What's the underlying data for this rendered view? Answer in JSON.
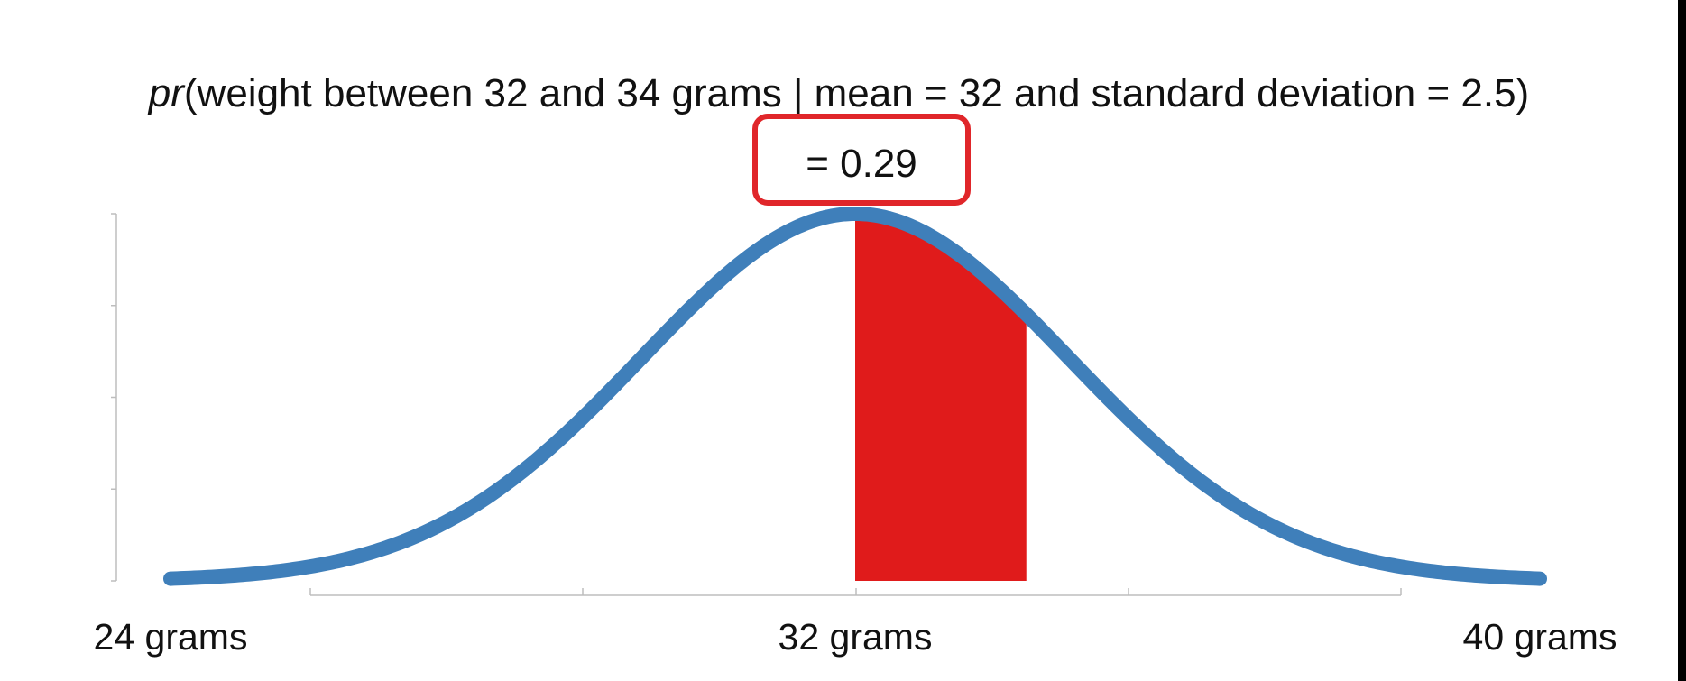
{
  "title": {
    "prefix": "pr",
    "rest": "(weight between 32 and 34 grams | mean = 32 and standard deviation = 2.5)"
  },
  "result": {
    "label": "= 0.29",
    "box_color": "#e0262a"
  },
  "chart_data": {
    "type": "area",
    "distribution": "normal",
    "mean": 32,
    "sd": 2.5,
    "xlim": [
      24,
      40
    ],
    "x_ticks": [
      24,
      27.2,
      30.4,
      32,
      35.2,
      38.4,
      40
    ],
    "x_tick_labels": [
      "24 grams",
      "32 grams",
      "40 grams"
    ],
    "x_tick_label_values": [
      24,
      32,
      40
    ],
    "shaded_region": [
      32,
      34
    ],
    "probability": 0.29,
    "curve_color": "#3f7fba",
    "shade_color": "#e01b1b",
    "axis_color": "#bdbdbd",
    "y_ticks_count": 5,
    "grid": false
  }
}
